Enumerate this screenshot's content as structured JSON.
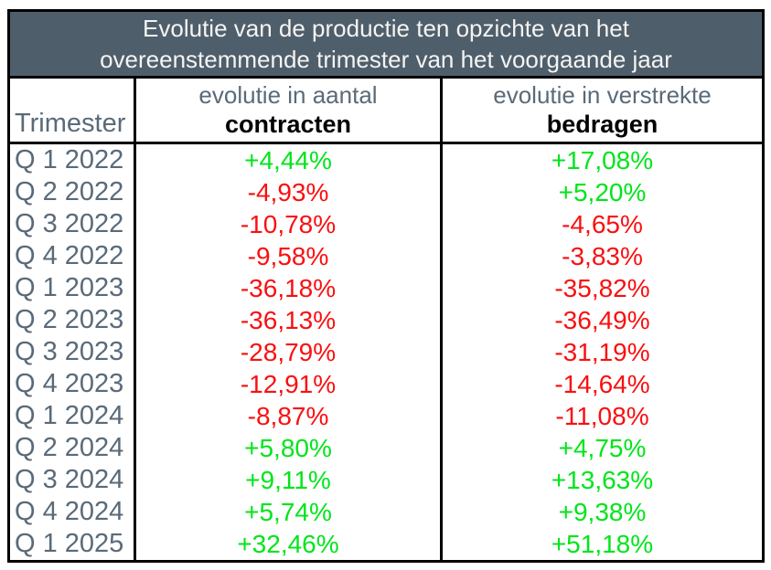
{
  "title": {
    "line1": "Evolutie van de productie ten opzichte van het",
    "line2": "overeenstemmende trimester van het voorgaande jaar"
  },
  "columns": {
    "quarter": {
      "label": "Trimester"
    },
    "contracts": {
      "label_top": "evolutie in aantal",
      "label_bottom": "contracten"
    },
    "amounts": {
      "label_top": "evolutie in verstrekte",
      "label_bottom": "bedragen"
    }
  },
  "rows": [
    {
      "quarter": "Q 1 2022",
      "contracts": "+4,44%",
      "amounts": "+17,08%"
    },
    {
      "quarter": "Q 2 2022",
      "contracts": "-4,93%",
      "amounts": "+5,20%"
    },
    {
      "quarter": "Q 3 2022",
      "contracts": "-10,78%",
      "amounts": "-4,65%"
    },
    {
      "quarter": "Q 4 2022",
      "contracts": "-9,58%",
      "amounts": "-3,83%"
    },
    {
      "quarter": "Q 1 2023",
      "contracts": "-36,18%",
      "amounts": "-35,82%"
    },
    {
      "quarter": "Q 2 2023",
      "contracts": "-36,13%",
      "amounts": "-36,49%"
    },
    {
      "quarter": "Q 3 2023",
      "contracts": "-28,79%",
      "amounts": "-31,19%"
    },
    {
      "quarter": "Q 4 2023",
      "contracts": "-12,91%",
      "amounts": "-14,64%"
    },
    {
      "quarter": "Q 1 2024",
      "contracts": "-8,87%",
      "amounts": "-11,08%"
    },
    {
      "quarter": "Q 2 2024",
      "contracts": "+5,80%",
      "amounts": "+4,75%"
    },
    {
      "quarter": "Q 3 2024",
      "contracts": "+9,11%",
      "amounts": "+13,63%"
    },
    {
      "quarter": "Q 4 2024",
      "contracts": "+5,74%",
      "amounts": "+9,38%"
    },
    {
      "quarter": "Q 1 2025",
      "contracts": "+32,46%",
      "amounts": "+51,18%"
    }
  ],
  "colors": {
    "header_background": "#4f5e6b",
    "header_text": "#f4f4f2",
    "label_text": "#5a6a78",
    "positive": "#00e51a",
    "negative": "#fa0f0f",
    "border": "#000000"
  },
  "chart_data": {
    "type": "table",
    "title": "Evolutie van de productie ten opzichte van het overeenstemmende trimester van het voorgaande jaar",
    "columns": [
      "Trimester",
      "evolutie in aantal contracten",
      "evolutie in verstrekte bedragen"
    ],
    "rows": [
      [
        "Q 1 2022",
        "+4,44%",
        "+17,08%"
      ],
      [
        "Q 2 2022",
        "-4,93%",
        "+5,20%"
      ],
      [
        "Q 3 2022",
        "-10,78%",
        "-4,65%"
      ],
      [
        "Q 4 2022",
        "-9,58%",
        "-3,83%"
      ],
      [
        "Q 1 2023",
        "-36,18%",
        "-35,82%"
      ],
      [
        "Q 2 2023",
        "-36,13%",
        "-36,49%"
      ],
      [
        "Q 3 2023",
        "-28,79%",
        "-31,19%"
      ],
      [
        "Q 4 2023",
        "-12,91%",
        "-14,64%"
      ],
      [
        "Q 1 2024",
        "-8,87%",
        "-11,08%"
      ],
      [
        "Q 2 2024",
        "+5,80%",
        "+4,75%"
      ],
      [
        "Q 3 2024",
        "+9,11%",
        "+13,63%"
      ],
      [
        "Q 4 2024",
        "+5,74%",
        "+9,38%"
      ],
      [
        "Q 1 2025",
        "+32,46%",
        "+51,18%"
      ]
    ],
    "series": [
      {
        "name": "evolutie in aantal contracten (%)",
        "values": [
          4.44,
          -4.93,
          -10.78,
          -9.58,
          -36.18,
          -36.13,
          -28.79,
          -12.91,
          -8.87,
          5.8,
          9.11,
          5.74,
          32.46
        ]
      },
      {
        "name": "evolutie in verstrekte bedragen (%)",
        "values": [
          17.08,
          5.2,
          -4.65,
          -3.83,
          -35.82,
          -36.49,
          -31.19,
          -14.64,
          -11.08,
          4.75,
          13.63,
          9.38,
          51.18
        ]
      }
    ],
    "categories": [
      "Q 1 2022",
      "Q 2 2022",
      "Q 3 2022",
      "Q 4 2022",
      "Q 1 2023",
      "Q 2 2023",
      "Q 3 2023",
      "Q 4 2023",
      "Q 1 2024",
      "Q 2 2024",
      "Q 3 2024",
      "Q 4 2024",
      "Q 1 2025"
    ],
    "value_color_rule": "positive values green, negative values red"
  }
}
